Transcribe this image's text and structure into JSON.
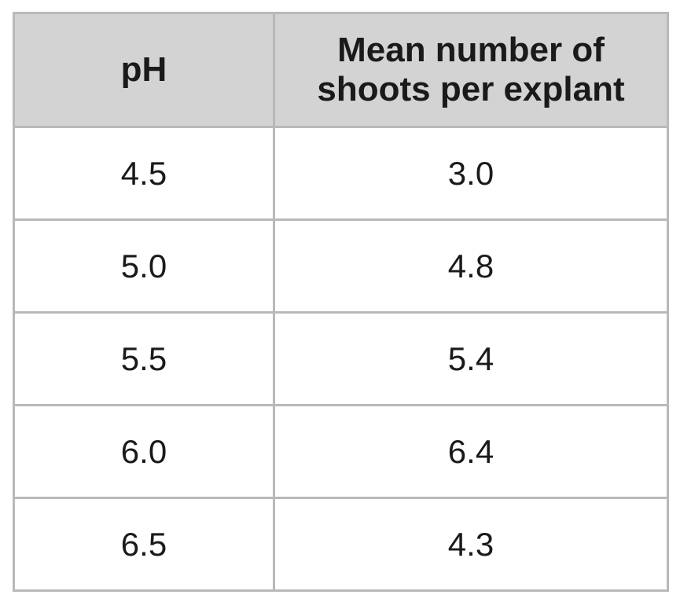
{
  "chart_data": {
    "type": "table",
    "columns": [
      "pH",
      "Mean number of shoots per explant"
    ],
    "rows": [
      [
        "4.5",
        "3.0"
      ],
      [
        "5.0",
        "4.8"
      ],
      [
        "5.5",
        "5.4"
      ],
      [
        "6.0",
        "6.4"
      ],
      [
        "6.5",
        "4.3"
      ]
    ]
  },
  "colors": {
    "header_bg": "#d3d3d3",
    "border": "#b9b9b9",
    "text": "#1a1a1a"
  }
}
